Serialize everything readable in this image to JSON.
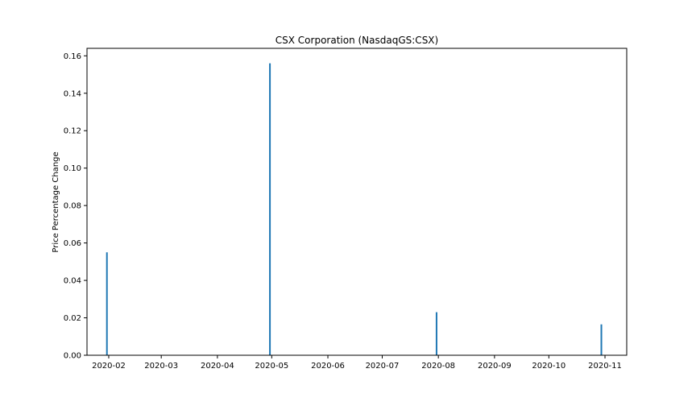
{
  "chart_data": {
    "type": "bar",
    "title": "CSX Corporation (NasdaqGS:CSX)",
    "xlabel": "",
    "ylabel": "Price Percentage Change",
    "x_type": "date",
    "x": [
      "2020-01-31",
      "2020-04-30",
      "2020-07-31",
      "2020-10-30"
    ],
    "values": [
      0.055,
      0.156,
      0.023,
      0.0165
    ],
    "ylim": [
      0,
      0.164
    ],
    "xlim": [
      "2020-01-20",
      "2020-11-13"
    ],
    "x_ticks": [
      "2020-02",
      "2020-03",
      "2020-04",
      "2020-05",
      "2020-06",
      "2020-07",
      "2020-08",
      "2020-09",
      "2020-10",
      "2020-11"
    ],
    "y_ticks": [
      "0.00",
      "0.02",
      "0.04",
      "0.06",
      "0.08",
      "0.10",
      "0.12",
      "0.14",
      "0.16"
    ],
    "grid": false,
    "legend": "none",
    "bar_color": "#1f77b4"
  }
}
